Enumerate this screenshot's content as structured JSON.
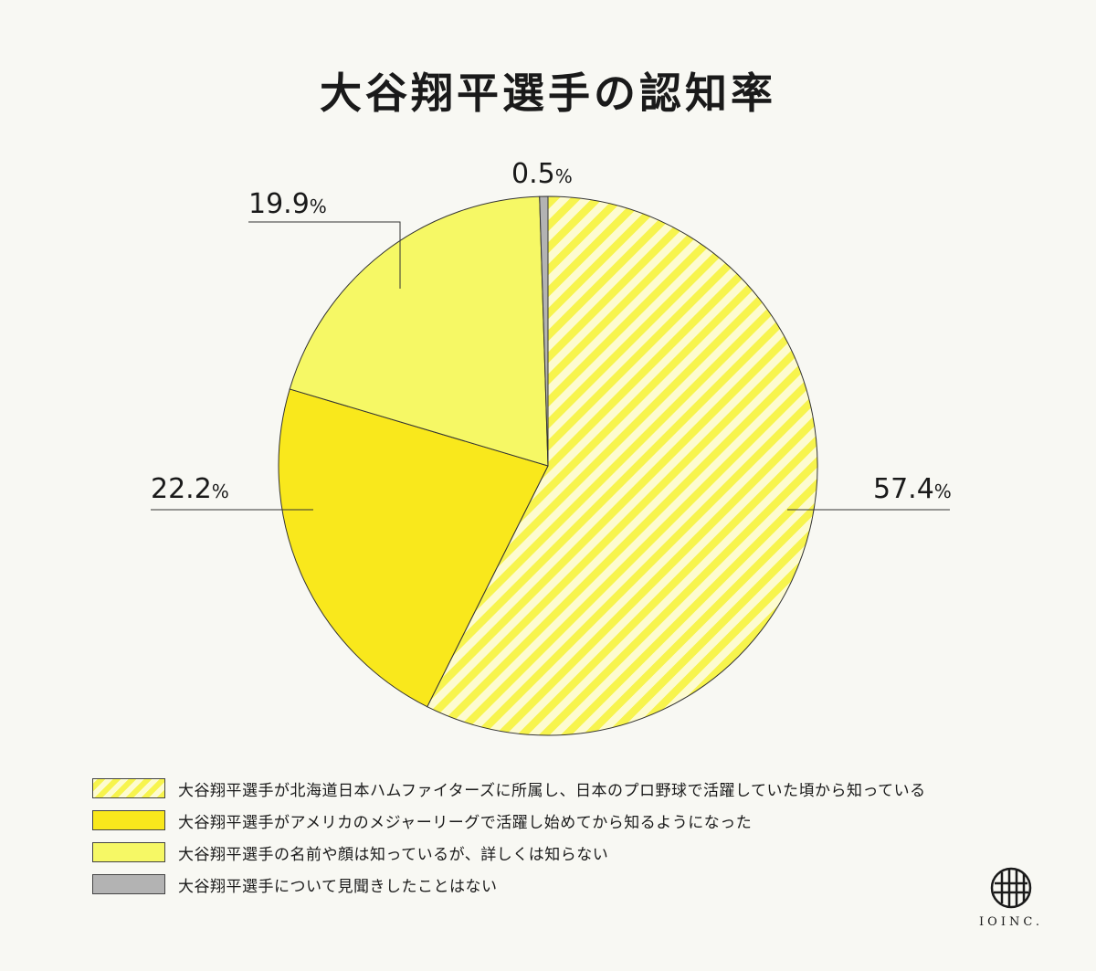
{
  "chart_data": {
    "type": "pie",
    "title": "大谷翔平選手の認知率",
    "unit": "%",
    "slices": [
      {
        "label": "大谷翔平選手が北海道日本ハムファイターズに所属し、日本のプロ野球で活躍していた頃から知っている",
        "value": 57.4,
        "value_text": "57.4",
        "fill": "hatch",
        "color": "#f7f44d"
      },
      {
        "label": "大谷翔平選手がアメリカのメジャーリーグで活躍し始めてから知るようになった",
        "value": 22.2,
        "value_text": "22.2",
        "fill": "solid",
        "color": "#f9e81c"
      },
      {
        "label": "大谷翔平選手の名前や顔は知っているが、詳しくは知らない",
        "value": 19.9,
        "value_text": "19.9",
        "fill": "solid",
        "color": "#f6f865"
      },
      {
        "label": "大谷翔平選手について見聞きしたことはない",
        "value": 0.5,
        "value_text": "0.5",
        "fill": "solid",
        "color": "#b3b3b3"
      }
    ],
    "start": "12 o'clock",
    "direction": "clockwise",
    "legend_position": "bottom"
  },
  "brand": {
    "logo_text": "IOINC."
  }
}
